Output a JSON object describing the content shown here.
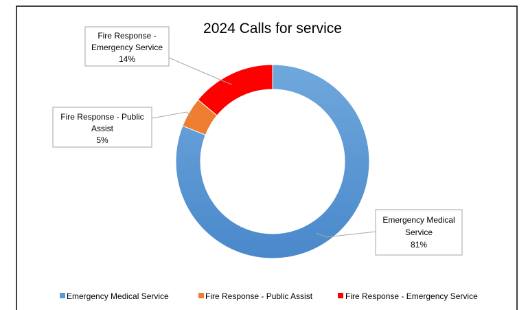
{
  "chart_data": {
    "type": "doughnut",
    "title": "2024 Calls for service",
    "slices": [
      {
        "label": "Emergency Medical Service",
        "value": 81,
        "display": "81%",
        "color": "#5B9BD5",
        "callout": [
          "Emergency Medical",
          "Service",
          "81%"
        ]
      },
      {
        "label": "Fire Response - Public Assist",
        "value": 5,
        "display": "5%",
        "color": "#ED7D31",
        "callout": [
          "Fire Response - Public",
          "Assist",
          "5%"
        ]
      },
      {
        "label": "Fire Response - Emergency Service",
        "value": 14,
        "display": "14%",
        "color": "#FF0000",
        "callout": [
          "Fire Response -",
          "Emergency Service",
          "14%"
        ]
      }
    ],
    "legend": {
      "position": "bottom",
      "items": [
        "Emergency Medical Service",
        "Fire Response - Public Assist",
        "Fire Response - Emergency Service"
      ]
    }
  }
}
